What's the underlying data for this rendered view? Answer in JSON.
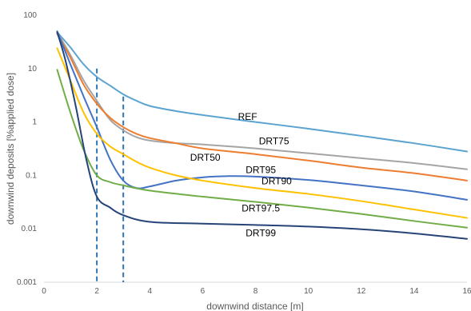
{
  "chart_data": {
    "type": "line",
    "title": "",
    "xlabel": "downwind distance [m]",
    "ylabel": "downwind deposits [%applied dose]",
    "xlim": [
      0,
      16
    ],
    "ylim": [
      0.001,
      100
    ],
    "yscale": "log",
    "grid": false,
    "legend": "none (inline series labels)",
    "x_ticks": [
      "0",
      "2",
      "4",
      "6",
      "8",
      "10",
      "12",
      "14",
      "16"
    ],
    "y_ticks": [
      "0.001",
      "0.01",
      "0.1",
      "1",
      "10",
      "100"
    ],
    "reference_lines": [
      {
        "x": 2,
        "y_top": 10,
        "style": "dashed",
        "color": "#2e75b6"
      },
      {
        "x": 3,
        "y_top": 3,
        "style": "dashed",
        "color": "#2e75b6"
      }
    ],
    "series": [
      {
        "name": "REF",
        "color": "#5ba3d0",
        "label_at": [
          7.7,
          1.1
        ],
        "points": [
          [
            0.5,
            48
          ],
          [
            1,
            25
          ],
          [
            1.5,
            12
          ],
          [
            2,
            7
          ],
          [
            2.5,
            4.8
          ],
          [
            3,
            3.3
          ],
          [
            3.5,
            2.5
          ],
          [
            4,
            2.0
          ],
          [
            5,
            1.6
          ],
          [
            6,
            1.35
          ],
          [
            8,
            1.0
          ],
          [
            10,
            0.75
          ],
          [
            12,
            0.55
          ],
          [
            14,
            0.4
          ],
          [
            16,
            0.28
          ]
        ]
      },
      {
        "name": "DRT75",
        "color": "#a5a5a5",
        "label_at": [
          8.7,
          0.38
        ],
        "points": [
          [
            0.5,
            48
          ],
          [
            1,
            18
          ],
          [
            1.5,
            6
          ],
          [
            2,
            2.5
          ],
          [
            2.5,
            1.1
          ],
          [
            3,
            0.7
          ],
          [
            3.5,
            0.52
          ],
          [
            4,
            0.45
          ],
          [
            5,
            0.4
          ],
          [
            6,
            0.38
          ],
          [
            8,
            0.32
          ],
          [
            10,
            0.26
          ],
          [
            12,
            0.21
          ],
          [
            14,
            0.17
          ],
          [
            16,
            0.13
          ]
        ]
      },
      {
        "name": "DRT50",
        "color": "#ed7d31",
        "label_at": [
          6.1,
          0.19
        ],
        "points": [
          [
            0.5,
            45
          ],
          [
            1,
            16
          ],
          [
            1.5,
            5
          ],
          [
            2,
            2.2
          ],
          [
            2.5,
            1.2
          ],
          [
            3,
            0.8
          ],
          [
            3.5,
            0.6
          ],
          [
            4,
            0.5
          ],
          [
            5,
            0.4
          ],
          [
            6,
            0.32
          ],
          [
            8,
            0.25
          ],
          [
            10,
            0.19
          ],
          [
            12,
            0.14
          ],
          [
            14,
            0.11
          ],
          [
            16,
            0.08
          ]
        ]
      },
      {
        "name": "DRT95",
        "color": "#4472c4",
        "label_at": [
          8.2,
          0.11
        ],
        "points": [
          [
            0.5,
            50
          ],
          [
            1,
            12
          ],
          [
            1.5,
            3
          ],
          [
            2,
            0.8
          ],
          [
            2.5,
            0.2
          ],
          [
            3,
            0.08
          ],
          [
            3.5,
            0.058
          ],
          [
            4,
            0.062
          ],
          [
            5,
            0.08
          ],
          [
            6,
            0.092
          ],
          [
            7,
            0.097
          ],
          [
            8,
            0.095
          ],
          [
            10,
            0.082
          ],
          [
            12,
            0.065
          ],
          [
            14,
            0.05
          ],
          [
            16,
            0.035
          ]
        ]
      },
      {
        "name": "DRT90",
        "color": "#ffc000",
        "label_at": [
          8.8,
          0.068
        ],
        "points": [
          [
            0.5,
            24
          ],
          [
            1,
            6
          ],
          [
            1.5,
            1.5
          ],
          [
            2,
            0.6
          ],
          [
            2.5,
            0.35
          ],
          [
            3,
            0.25
          ],
          [
            3.5,
            0.18
          ],
          [
            4,
            0.14
          ],
          [
            5,
            0.1
          ],
          [
            6,
            0.08
          ],
          [
            8,
            0.058
          ],
          [
            10,
            0.045
          ],
          [
            12,
            0.033
          ],
          [
            14,
            0.023
          ],
          [
            16,
            0.016
          ]
        ]
      },
      {
        "name": "DRT97.5",
        "color": "#70ad47",
        "label_at": [
          8.2,
          0.021
        ],
        "points": [
          [
            0.5,
            9.5
          ],
          [
            1,
            1.5
          ],
          [
            1.5,
            0.3
          ],
          [
            2,
            0.1
          ],
          [
            2.5,
            0.075
          ],
          [
            3,
            0.065
          ],
          [
            4,
            0.052
          ],
          [
            6,
            0.04
          ],
          [
            8,
            0.032
          ],
          [
            10,
            0.025
          ],
          [
            12,
            0.019
          ],
          [
            14,
            0.014
          ],
          [
            16,
            0.0105
          ]
        ]
      },
      {
        "name": "DRT99",
        "color": "#264478",
        "label_at": [
          8.2,
          0.0072
        ],
        "points": [
          [
            0.5,
            48
          ],
          [
            0.8,
            15
          ],
          [
            1.2,
            2
          ],
          [
            1.6,
            0.2
          ],
          [
            2,
            0.04
          ],
          [
            2.5,
            0.025
          ],
          [
            3,
            0.018
          ],
          [
            4,
            0.0135
          ],
          [
            6,
            0.0125
          ],
          [
            8,
            0.0118
          ],
          [
            10,
            0.011
          ],
          [
            12,
            0.0098
          ],
          [
            14,
            0.0082
          ],
          [
            16,
            0.0065
          ]
        ]
      }
    ]
  }
}
